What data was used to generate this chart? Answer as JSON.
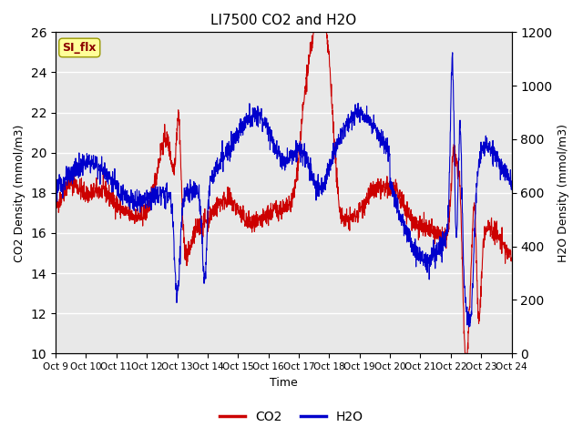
{
  "title": "LI7500 CO2 and H2O",
  "xlabel": "Time",
  "ylabel_left": "CO2 Density (mmol/m3)",
  "ylabel_right": "H2O Density (mmol/m3)",
  "ylim_left": [
    10,
    26
  ],
  "ylim_right": [
    0,
    1200
  ],
  "yticks_left": [
    10,
    12,
    14,
    16,
    18,
    20,
    22,
    24,
    26
  ],
  "yticks_right": [
    0,
    200,
    400,
    600,
    800,
    1000,
    1200
  ],
  "xtick_labels": [
    "Oct 9",
    "Oct 10",
    "Oct 11",
    "Oct 12",
    "Oct 13",
    "Oct 14",
    "Oct 15",
    "Oct 16",
    "Oct 17",
    "Oct 18",
    "Oct 19",
    "Oct 20",
    "Oct 21",
    "Oct 22",
    "Oct 23",
    "Oct 24"
  ],
  "co2_color": "#CC0000",
  "h2o_color": "#0000CC",
  "legend_co2": "CO2",
  "legend_h2o": "H2O",
  "annotation_text": "SI_flx",
  "bg_color": "#E8E8E8",
  "fig_bg_color": "#FFFFFF",
  "linewidth": 0.8,
  "n_points": 2000,
  "seed": 42
}
